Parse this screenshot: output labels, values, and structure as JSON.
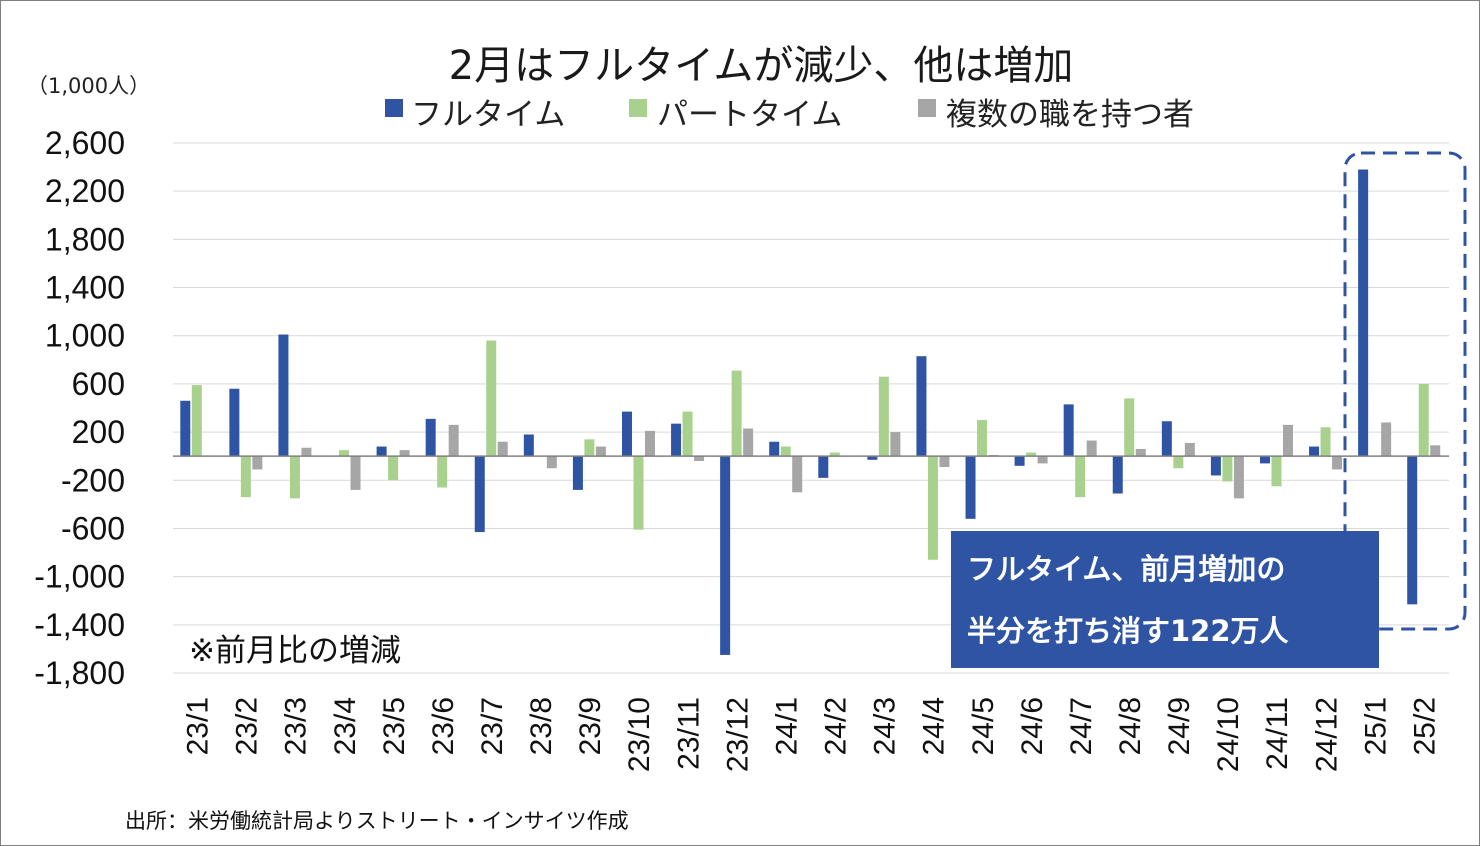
{
  "chart_data": {
    "type": "bar",
    "title": "2月はフルタイムが減少、他は増加",
    "unit_label": "（1,000人）",
    "ylim": [
      -1800,
      2600
    ],
    "yticks": [
      2600,
      2200,
      1800,
      1400,
      1000,
      600,
      200,
      -200,
      -600,
      -1000,
      -1400,
      -1800
    ],
    "ytick_labels": [
      "2,600",
      "2,200",
      "1,800",
      "1,400",
      "1,000",
      "600",
      "200",
      "-200",
      "-600",
      "-1,000",
      "-1,400",
      "-1,800"
    ],
    "categories": [
      "23/1",
      "23/2",
      "23/3",
      "23/4",
      "23/5",
      "23/6",
      "23/7",
      "23/8",
      "23/9",
      "23/10",
      "23/11",
      "23/12",
      "24/1",
      "24/2",
      "24/3",
      "24/4",
      "24/5",
      "24/6",
      "24/7",
      "24/8",
      "24/9",
      "24/10",
      "24/11",
      "24/12",
      "25/1",
      "25/2"
    ],
    "series": [
      {
        "name": "フルタイム",
        "color": "#2f54a3",
        "values": [
          460,
          560,
          1010,
          0,
          80,
          310,
          -630,
          180,
          -280,
          370,
          270,
          -1650,
          120,
          -180,
          -30,
          830,
          -520,
          -80,
          430,
          -310,
          290,
          -160,
          -60,
          80,
          2380,
          -1230
        ]
      },
      {
        "name": "パートタイム",
        "color": "#a9d18e",
        "values": [
          590,
          -340,
          -350,
          50,
          -200,
          -260,
          960,
          0,
          140,
          -610,
          370,
          710,
          80,
          30,
          660,
          -860,
          300,
          30,
          -340,
          480,
          -100,
          -210,
          -250,
          240,
          0,
          600
        ]
      },
      {
        "name": "複数の職を持つ者",
        "color": "#a6a6a6",
        "values": [
          0,
          -110,
          70,
          -280,
          50,
          260,
          120,
          -100,
          80,
          210,
          -40,
          230,
          -300,
          0,
          200,
          -90,
          10,
          -60,
          130,
          60,
          110,
          -350,
          260,
          -110,
          280,
          90
        ]
      }
    ],
    "note": "※前月比の増減",
    "source": "出所：米労働統計局よりストリート・インサイツ作成",
    "callout": {
      "lines": [
        "フルタイム、前月増加の",
        "半分を打ち消す122万人"
      ],
      "color": "#2f54a3"
    },
    "grid": true,
    "legend_position": "top"
  }
}
